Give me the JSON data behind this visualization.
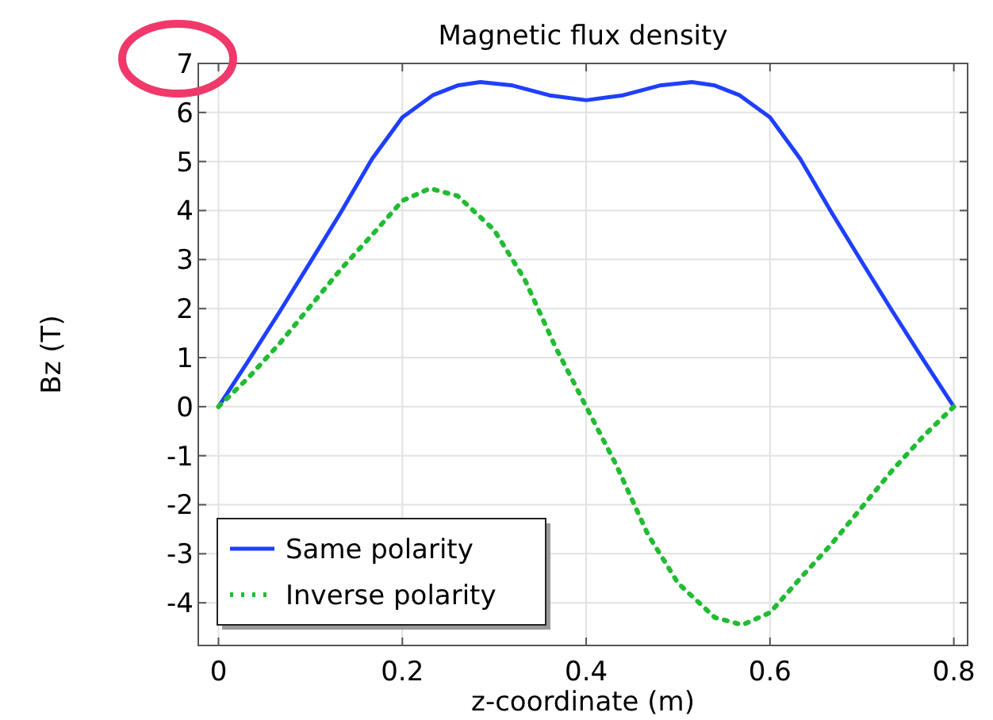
{
  "chart_data": {
    "type": "line",
    "title": "Magnetic flux density",
    "xlabel": "z-coordinate (m)",
    "ylabel": "Bz (T)",
    "xlim": [
      -0.022,
      0.815
    ],
    "ylim": [
      -4.87,
      7
    ],
    "xticks": [
      0,
      0.2,
      0.4,
      0.6,
      0.8
    ],
    "yticks": [
      -4,
      -3,
      -2,
      -1,
      0,
      1,
      2,
      3,
      4,
      5,
      6,
      7
    ],
    "grid": true,
    "legend": "bottom left",
    "series": [
      {
        "name": "Same polarity",
        "color": "#1f3fff",
        "line_style": "solid",
        "x": [
          0,
          0.033,
          0.067,
          0.1,
          0.133,
          0.167,
          0.2,
          0.233,
          0.26,
          0.285,
          0.32,
          0.36,
          0.4,
          0.44,
          0.48,
          0.515,
          0.54,
          0.567,
          0.6,
          0.633,
          0.667,
          0.7,
          0.733,
          0.767,
          0.8
        ],
        "values": [
          0,
          0.95,
          1.95,
          2.95,
          3.96,
          5.05,
          5.9,
          6.35,
          6.55,
          6.62,
          6.55,
          6.35,
          6.25,
          6.35,
          6.55,
          6.62,
          6.55,
          6.35,
          5.9,
          5.05,
          3.96,
          2.95,
          1.95,
          0.95,
          0
        ]
      },
      {
        "name": "Inverse polarity",
        "color": "#22bb33",
        "line_style": "dotted",
        "x": [
          0,
          0.033,
          0.067,
          0.1,
          0.133,
          0.167,
          0.2,
          0.23,
          0.26,
          0.3,
          0.333,
          0.367,
          0.4,
          0.433,
          0.467,
          0.5,
          0.54,
          0.57,
          0.6,
          0.633,
          0.667,
          0.7,
          0.733,
          0.767,
          0.8
        ],
        "values": [
          0,
          0.6,
          1.3,
          2.05,
          2.8,
          3.5,
          4.2,
          4.45,
          4.3,
          3.6,
          2.6,
          1.2,
          0,
          -1.2,
          -2.6,
          -3.6,
          -4.3,
          -4.45,
          -4.2,
          -3.5,
          -2.8,
          -2.05,
          -1.3,
          -0.6,
          0
        ]
      }
    ]
  }
}
